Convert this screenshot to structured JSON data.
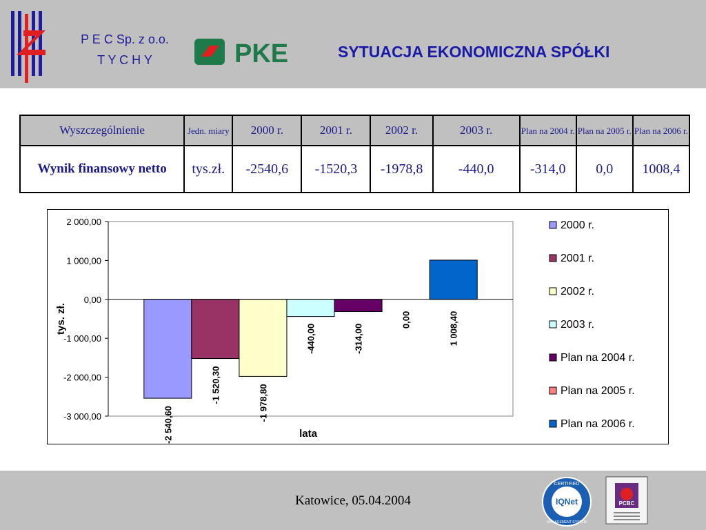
{
  "header": {
    "company_line1": "P E C Sp. z o.o.",
    "company_line2": "T Y C H Y",
    "pke_logo_text": "PKE",
    "title": "SYTUACJA EKONOMICZNA SPÓŁKI"
  },
  "table": {
    "headers": [
      "Wyszczególnienie",
      "Jedn. miary",
      "2000 r.",
      "2001 r.",
      "2002 r.",
      "2003 r.",
      "Plan na 2004 r.",
      "Plan na 2005 r.",
      "Plan na 2006 r."
    ],
    "row": {
      "name": "Wynik finansowy netto",
      "unit": "tys.zł.",
      "values": [
        "-2540,6",
        "-1520,3",
        "-1978,8",
        "-440,0",
        "-314,0",
        "0,0",
        "1008,4"
      ]
    }
  },
  "chart_data": {
    "type": "bar",
    "title": "",
    "xlabel": "lata",
    "ylabel": "tys. zł.",
    "ylim": [
      -3000,
      2000
    ],
    "yticks": [
      2000,
      1000,
      0,
      -1000,
      -2000,
      -3000
    ],
    "ytick_labels": [
      "2 000,00",
      "1 000,00",
      "0,00",
      "-1 000,00",
      "-2 000,00",
      "-3 000,00"
    ],
    "grid": false,
    "legend_position": "right",
    "series": [
      {
        "name": "2000 r.",
        "value": -2540.6,
        "label": "-2 540,60",
        "color": "#9999ff"
      },
      {
        "name": "2001 r.",
        "value": -1520.3,
        "label": "-1 520,30",
        "color": "#993366"
      },
      {
        "name": "2002 r.",
        "value": -1978.8,
        "label": "-1 978,80",
        "color": "#ffffcc"
      },
      {
        "name": "2003 r.",
        "value": -440.0,
        "label": "-440,00",
        "color": "#ccffff"
      },
      {
        "name": "Plan na 2004 r.",
        "value": -314.0,
        "label": "-314,00",
        "color": "#660066"
      },
      {
        "name": "Plan na 2005 r.",
        "value": 0.0,
        "label": "0,00",
        "color": "#ff8080"
      },
      {
        "name": "Plan na 2006 r.",
        "value": 1008.4,
        "label": "1 008,40",
        "color": "#0066cc"
      }
    ]
  },
  "footer": {
    "place_date": "Katowice, 05.04.2004",
    "cert1_top": "CERTIFIED",
    "cert1_center": "IQNet",
    "cert1_bottom": "MANAGEMENT SYSTEM",
    "cert2_center": "PCBC"
  }
}
